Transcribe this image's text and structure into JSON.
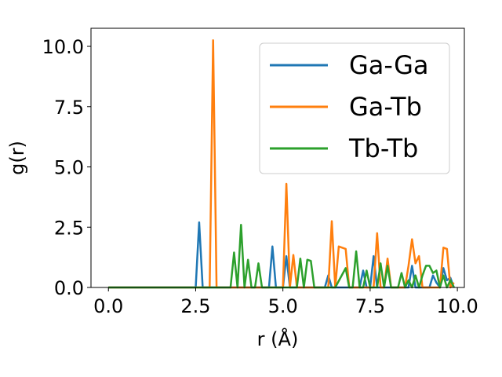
{
  "chart_data": {
    "type": "line",
    "xlabel": "r (Å)",
    "ylabel": "g(r)",
    "xlim": [
      -0.5,
      10.2
    ],
    "ylim": [
      0,
      10.75
    ],
    "xticks": [
      0.0,
      2.5,
      5.0,
      7.5,
      10.0
    ],
    "yticks": [
      0.0,
      2.5,
      5.0,
      7.5,
      10.0
    ],
    "xtick_labels": [
      "0.0",
      "2.5",
      "5.0",
      "7.5",
      "10.0"
    ],
    "ytick_labels": [
      "0.0",
      "2.5",
      "5.0",
      "7.5",
      "10.0"
    ],
    "grid": false,
    "legend_position": "top-right",
    "series": [
      {
        "name": "Ga-Ga",
        "color": "#1f77b4",
        "x": [
          0.0,
          2.5,
          2.6,
          2.7,
          3.0,
          4.6,
          4.7,
          4.8,
          5.0,
          5.1,
          5.2,
          6.2,
          6.3,
          6.4,
          6.5,
          7.2,
          7.3,
          7.4,
          7.5,
          7.6,
          7.7,
          7.8,
          8.6,
          8.7,
          8.8,
          9.2,
          9.3,
          9.4,
          9.5,
          9.6,
          9.7,
          9.8,
          9.9
        ],
        "y": [
          0.0,
          0.0,
          2.7,
          0.0,
          0.0,
          0.0,
          1.7,
          0.0,
          0.0,
          1.3,
          0.0,
          0.0,
          0.5,
          0.0,
          0.0,
          0.0,
          0.7,
          0.0,
          0.0,
          1.3,
          0.0,
          0.0,
          0.0,
          0.9,
          0.0,
          0.0,
          0.5,
          0.2,
          0.0,
          0.8,
          0.3,
          0.4,
          0.0
        ]
      },
      {
        "name": "Ga-Tb",
        "color": "#ff7f0e",
        "x": [
          0.0,
          2.9,
          3.0,
          3.1,
          5.0,
          5.1,
          5.2,
          5.3,
          5.4,
          6.3,
          6.4,
          6.5,
          6.6,
          6.8,
          6.9,
          7.0,
          7.6,
          7.7,
          7.8,
          7.9,
          8.0,
          8.1,
          8.5,
          8.6,
          8.7,
          8.8,
          8.9,
          9.0,
          9.5,
          9.6,
          9.7,
          9.8,
          9.9
        ],
        "y": [
          0.0,
          0.0,
          10.25,
          0.0,
          0.0,
          4.3,
          0.0,
          1.35,
          0.0,
          0.0,
          2.75,
          0.0,
          1.7,
          1.6,
          0.0,
          0.0,
          0.0,
          2.25,
          0.0,
          0.0,
          1.2,
          0.0,
          0.0,
          0.9,
          2.0,
          1.0,
          1.3,
          0.0,
          0.0,
          1.65,
          1.6,
          0.0,
          0.2
        ]
      },
      {
        "name": "Tb-Tb",
        "color": "#2ca02c",
        "x": [
          0.0,
          3.5,
          3.6,
          3.7,
          3.8,
          3.9,
          4.0,
          4.1,
          4.2,
          4.3,
          4.4,
          5.4,
          5.5,
          5.6,
          5.7,
          5.8,
          5.9,
          6.0,
          6.5,
          6.8,
          6.9,
          7.0,
          7.1,
          7.2,
          7.3,
          7.4,
          7.5,
          7.7,
          7.8,
          7.9,
          8.0,
          8.1,
          8.3,
          8.4,
          8.5,
          8.6,
          8.7,
          8.8,
          8.9,
          9.0,
          9.1,
          9.2,
          9.3,
          9.4,
          9.5,
          9.6,
          9.7,
          9.8,
          9.9
        ],
        "y": [
          0.0,
          0.0,
          1.45,
          0.0,
          2.6,
          0.0,
          1.15,
          0.0,
          0.0,
          1.0,
          0.0,
          0.0,
          1.2,
          0.0,
          1.15,
          1.1,
          0.0,
          0.0,
          0.0,
          0.8,
          0.0,
          0.0,
          1.5,
          0.0,
          0.0,
          0.7,
          0.0,
          0.0,
          1.0,
          0.0,
          0.9,
          0.0,
          0.0,
          0.6,
          0.0,
          0.3,
          0.0,
          0.5,
          0.0,
          0.5,
          0.9,
          0.9,
          0.6,
          0.7,
          0.0,
          0.5,
          0.0,
          0.3,
          0.0
        ]
      }
    ]
  }
}
